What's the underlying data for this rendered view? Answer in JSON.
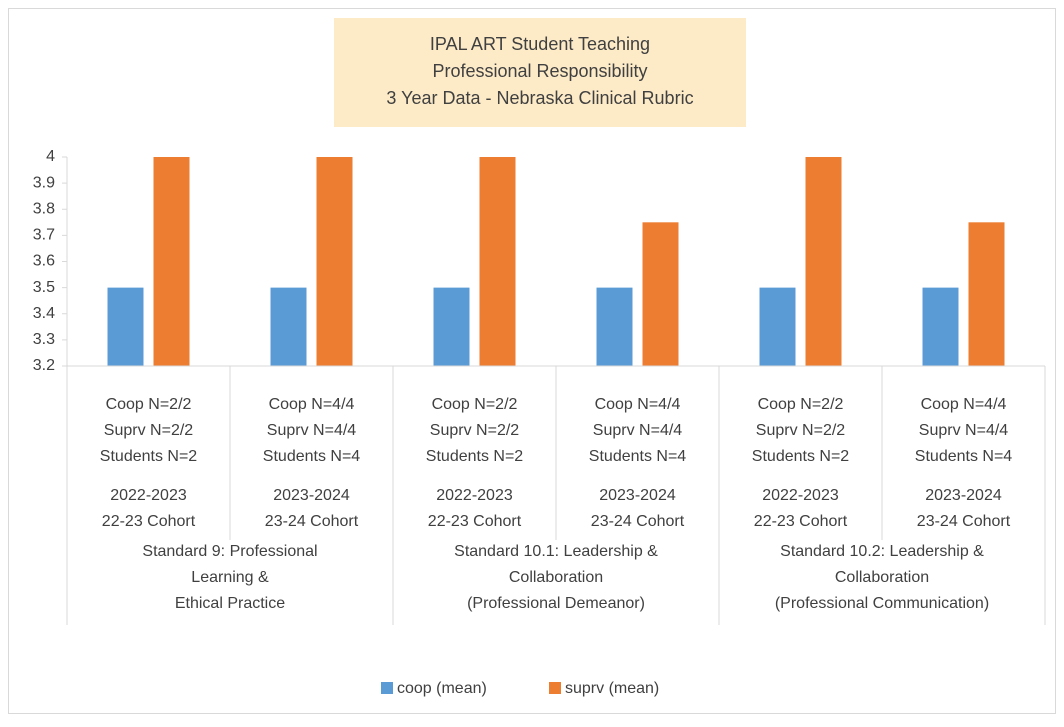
{
  "chart_data": {
    "type": "bar",
    "title": [
      "IPAL ART  Student Teaching",
      "Professional Responsibility",
      "3 Year Data - Nebraska Clinical Rubric"
    ],
    "categories": [
      [
        "Coop N=2/2",
        "Suprv N=2/2",
        "Students N=2",
        "2022-2023",
        "22-23 Cohort"
      ],
      [
        "Coop N=4/4",
        "Suprv N=4/4",
        "Students N=4",
        "2023-2024",
        "23-24 Cohort"
      ],
      [
        "Coop N=2/2",
        "Suprv N=2/2",
        "Students N=2",
        "2022-2023",
        "22-23 Cohort"
      ],
      [
        "Coop N=4/4",
        "Suprv N=4/4",
        "Students N=4",
        "2023-2024",
        "23-24 Cohort"
      ],
      [
        "Coop N=2/2",
        "Suprv N=2/2",
        "Students N=2",
        "2022-2023",
        "22-23 Cohort"
      ],
      [
        "Coop N=4/4",
        "Suprv N=4/4",
        "Students N=4",
        "2023-2024",
        "23-24 Cohort"
      ]
    ],
    "groups": [
      [
        "Standard 9: Professional",
        "Learning &",
        "Ethical Practice"
      ],
      [
        "Standard 10.1: Leadership &",
        "Collaboration",
        "(Professional Demeanor)"
      ],
      [
        "Standard 10.2: Leadership &",
        "Collaboration",
        "(Professional Communication)"
      ]
    ],
    "series": [
      {
        "name": "coop (mean)",
        "color": "#5b9bd5",
        "values": [
          3.5,
          3.5,
          3.5,
          3.5,
          3.5,
          3.5
        ]
      },
      {
        "name": "suprv (mean)",
        "color": "#ed7d31",
        "values": [
          4,
          4,
          4,
          3.75,
          4,
          3.75
        ]
      }
    ],
    "ylim": [
      3.2,
      4
    ],
    "yticks": [
      3.2,
      3.3,
      3.4,
      3.5,
      3.6,
      3.7,
      3.8,
      3.9,
      4
    ],
    "grid": false,
    "legend": "bottom"
  }
}
